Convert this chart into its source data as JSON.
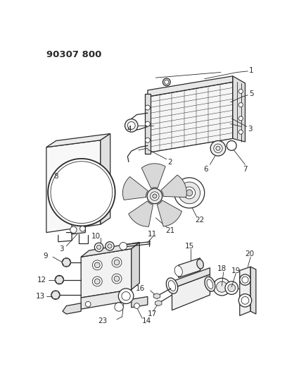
{
  "title": "90307 800",
  "bg_color": "#ffffff",
  "line_color": "#2a2a2a",
  "fig_width": 4.08,
  "fig_height": 5.33,
  "dpi": 100
}
